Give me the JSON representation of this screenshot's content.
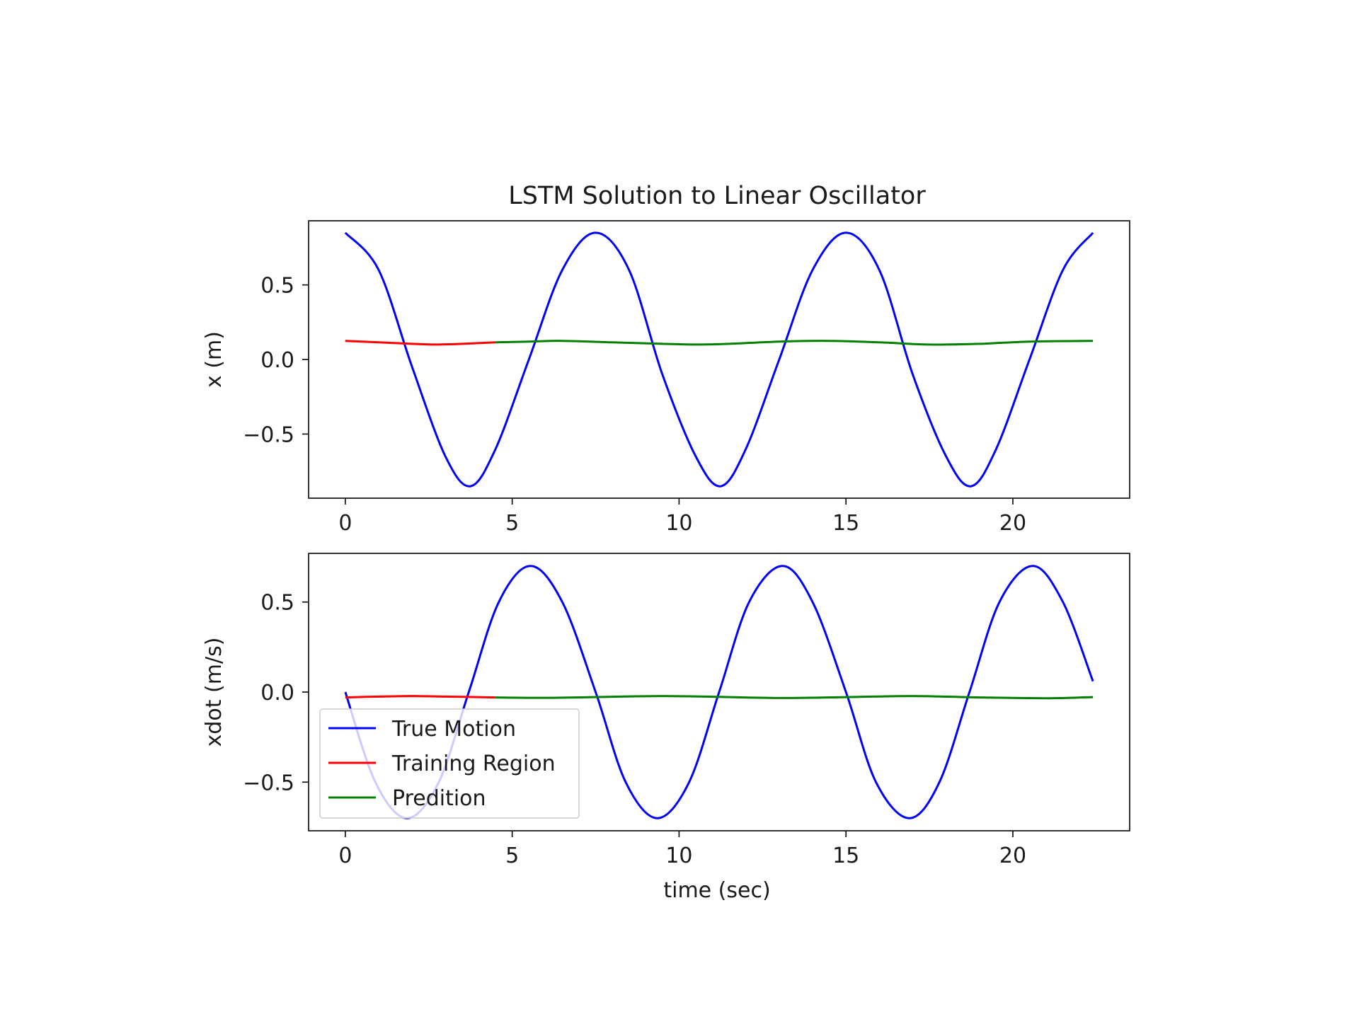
{
  "chart_data": {
    "type": "line",
    "title": "LSTM Solution to Linear Oscillator",
    "xlabel": "time (sec)",
    "legend": {
      "placement": "lower-left of bottom subplot",
      "entries": [
        {
          "label": "True Motion",
          "color": "#0000ff"
        },
        {
          "label": "Training Region",
          "color": "#ff0000"
        },
        {
          "label": "Predition",
          "color": "#008000"
        }
      ]
    },
    "subplots": [
      {
        "ylabel": "x (m)",
        "xlim": [
          -1.1,
          23.5
        ],
        "ylim": [
          -0.93,
          0.93
        ],
        "xticks": [
          0,
          5,
          10,
          15,
          20
        ],
        "xtick_labels": [
          "0",
          "5",
          "10",
          "15",
          "20"
        ],
        "yticks": [
          0.5,
          0.0,
          -0.5
        ],
        "ytick_labels": [
          "0.5",
          "0.0",
          "−0.5"
        ],
        "series": [
          {
            "label": "True Motion",
            "color": "#0000ff",
            "x": [
              0,
              1,
              2,
              3,
              3.75,
              4.5,
              5.5,
              6.5,
              7.5,
              8.5,
              9.5,
              10.5,
              11.25,
              12,
              13,
              14,
              15,
              16,
              17,
              18,
              18.75,
              19.5,
              20.5,
              21.5,
              22.4
            ],
            "y": [
              0.85,
              0.6,
              -0.05,
              -0.65,
              -0.85,
              -0.6,
              0.0,
              0.6,
              0.85,
              0.6,
              -0.1,
              -0.65,
              -0.85,
              -0.6,
              0.0,
              0.6,
              0.85,
              0.6,
              -0.1,
              -0.65,
              -0.85,
              -0.6,
              0.0,
              0.6,
              0.85
            ]
          },
          {
            "label": "Training Region",
            "color": "#ff0000",
            "x": [
              0,
              1,
              2,
              2.7,
              3.5,
              4.5
            ],
            "y": [
              0.125,
              0.115,
              0.105,
              0.1,
              0.105,
              0.115
            ]
          },
          {
            "label": "Predition",
            "color": "#008000",
            "x": [
              4.5,
              5.5,
              6.5,
              8,
              9.5,
              10.5,
              11.5,
              13,
              14.5,
              16,
              17.5,
              19,
              20.5,
              22.4
            ],
            "y": [
              0.115,
              0.12,
              0.125,
              0.115,
              0.105,
              0.1,
              0.105,
              0.12,
              0.125,
              0.115,
              0.1,
              0.105,
              0.12,
              0.125
            ]
          }
        ]
      },
      {
        "ylabel": "xdot (m/s)",
        "xlim": [
          -1.1,
          23.5
        ],
        "ylim": [
          -0.77,
          0.77
        ],
        "xticks": [
          0,
          5,
          10,
          15,
          20
        ],
        "xtick_labels": [
          "0",
          "5",
          "10",
          "15",
          "20"
        ],
        "yticks": [
          0.5,
          0.0,
          -0.5
        ],
        "ytick_labels": [
          "0.5",
          "0.0",
          "−0.5"
        ],
        "series": [
          {
            "label": "True Motion",
            "color": "#0000ff",
            "x": [
              0,
              0.9,
              1.85,
              2.8,
              3.7,
              4.6,
              5.55,
              6.5,
              7.5,
              8.4,
              9.35,
              10.3,
              11.2,
              12.1,
              13.1,
              14.0,
              15.0,
              15.9,
              16.9,
              17.8,
              18.7,
              19.6,
              20.6,
              21.5,
              22.4
            ],
            "y": [
              0.0,
              -0.5,
              -0.7,
              -0.5,
              0.0,
              0.5,
              0.7,
              0.5,
              0.0,
              -0.5,
              -0.7,
              -0.5,
              0.0,
              0.5,
              0.7,
              0.5,
              0.0,
              -0.5,
              -0.7,
              -0.5,
              0.0,
              0.5,
              0.7,
              0.5,
              0.06
            ]
          },
          {
            "label": "Training Region",
            "color": "#ff0000",
            "x": [
              0,
              1,
              2,
              3,
              4.5
            ],
            "y": [
              -0.03,
              -0.025,
              -0.022,
              -0.025,
              -0.03
            ]
          },
          {
            "label": "Predition",
            "color": "#008000",
            "x": [
              4.5,
              6,
              8,
              9.5,
              11,
              13,
              15,
              17,
              19,
              21,
              22.4
            ],
            "y": [
              -0.03,
              -0.032,
              -0.026,
              -0.022,
              -0.026,
              -0.033,
              -0.028,
              -0.022,
              -0.03,
              -0.034,
              -0.028
            ]
          }
        ]
      }
    ]
  }
}
